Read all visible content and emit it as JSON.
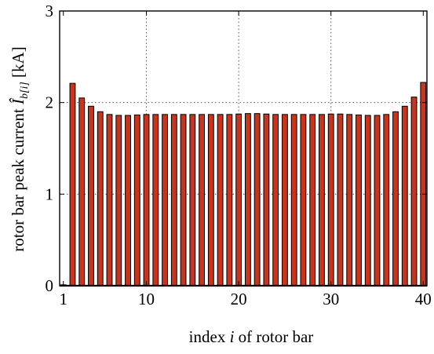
{
  "chart_data": {
    "type": "bar",
    "xlabel": "index i of rotor bar",
    "xlabel_parts": {
      "before": "index ",
      "variable": "i",
      "after": " of rotor bar"
    },
    "ylabel": "rotor bar peak current Î_b[i] [kA]",
    "ylabel_parts": {
      "before": "rotor bar peak current ",
      "symbol": "Î",
      "subscript": "b[i]",
      "after": "  [kA]"
    },
    "x": [
      1,
      2,
      3,
      4,
      5,
      6,
      7,
      8,
      9,
      10,
      11,
      12,
      13,
      14,
      15,
      16,
      17,
      18,
      19,
      20,
      21,
      22,
      23,
      24,
      25,
      26,
      27,
      28,
      29,
      30,
      31,
      32,
      33,
      34,
      35,
      36,
      37,
      38,
      39,
      40
    ],
    "values": [
      0.01,
      2.21,
      2.05,
      1.96,
      1.9,
      1.87,
      1.86,
      1.86,
      1.865,
      1.87,
      1.87,
      1.87,
      1.87,
      1.87,
      1.87,
      1.87,
      1.87,
      1.87,
      1.87,
      1.875,
      1.88,
      1.88,
      1.875,
      1.87,
      1.87,
      1.87,
      1.87,
      1.87,
      1.87,
      1.875,
      1.875,
      1.87,
      1.865,
      1.86,
      1.86,
      1.87,
      1.9,
      1.96,
      2.06,
      2.22
    ],
    "xlim": [
      0.6,
      40.4
    ],
    "ylim": [
      0,
      3
    ],
    "xticks": [
      1,
      10,
      20,
      30,
      40
    ],
    "yticks": [
      0,
      1,
      2,
      3
    ],
    "grid": true,
    "colors": {
      "bar_fill": "#c8341c",
      "bar_stroke": "#000000",
      "grid": "#555555",
      "axis": "#000000"
    }
  }
}
